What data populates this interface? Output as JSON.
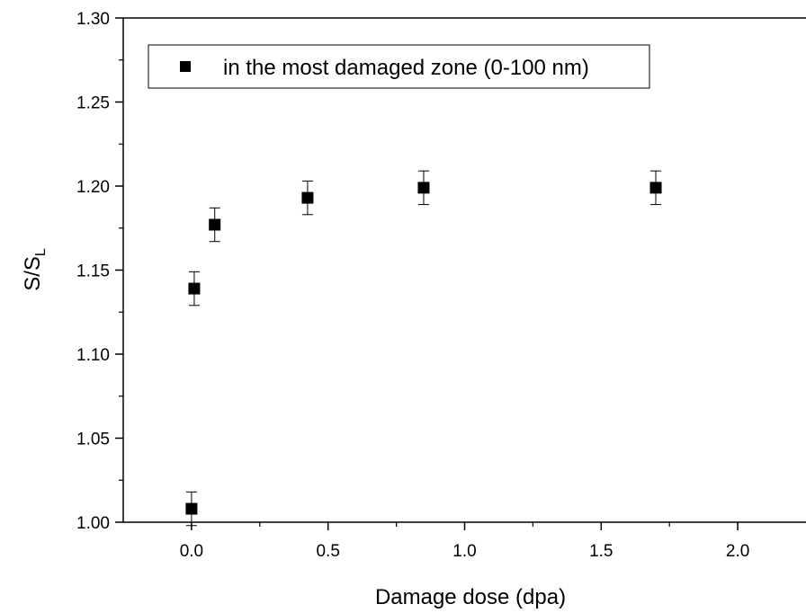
{
  "chart_data": {
    "type": "scatter",
    "xlabel": "Damage dose (dpa)",
    "ylabel_main": "S/S",
    "ylabel_sub": "L",
    "xlim": [
      -0.25,
      2.25
    ],
    "ylim": [
      1.0,
      1.3
    ],
    "x_ticks": [
      0.0,
      0.5,
      1.0,
      1.5,
      2.0
    ],
    "x_tick_labels": [
      "0.0",
      "0.5",
      "1.0",
      "1.5",
      "2.0"
    ],
    "y_ticks": [
      1.0,
      1.05,
      1.1,
      1.15,
      1.2,
      1.25,
      1.3
    ],
    "y_tick_labels": [
      "1.00",
      "1.05",
      "1.10",
      "1.15",
      "1.20",
      "1.25",
      "1.30"
    ],
    "grid": false,
    "legend_position": "top-left",
    "series": [
      {
        "name": "in the most damaged zone (0-100 nm)",
        "marker": "square",
        "color": "#000000",
        "points": [
          {
            "x": 0.0,
            "y": 1.008,
            "err": 0.01
          },
          {
            "x": 0.01,
            "y": 1.139,
            "err": 0.01
          },
          {
            "x": 0.085,
            "y": 1.177,
            "err": 0.01
          },
          {
            "x": 0.425,
            "y": 1.193,
            "err": 0.01
          },
          {
            "x": 0.85,
            "y": 1.199,
            "err": 0.01
          },
          {
            "x": 1.7,
            "y": 1.199,
            "err": 0.01
          }
        ]
      }
    ]
  }
}
